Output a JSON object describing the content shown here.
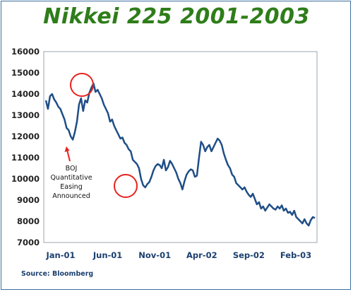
{
  "title": "Nikkei 225 2001-2003",
  "source": "Source: Bloomberg",
  "annotation": {
    "lines": [
      "BOJ",
      "Quantitative",
      "Easing",
      "Announced"
    ],
    "color": "#e8231f"
  },
  "colors": {
    "line": "#1f4e87",
    "title": "#2e7d1a",
    "highlight": "#e8231f",
    "frame": "#3d6e9e"
  },
  "chart_data": {
    "type": "line",
    "title": "Nikkei 225 2001-2003",
    "xlabel": "",
    "ylabel": "",
    "ylim": [
      7000,
      16000
    ],
    "yticks": [
      7000,
      8000,
      9000,
      10000,
      11000,
      12000,
      13000,
      14000,
      15000,
      16000
    ],
    "xtick_labels": [
      "Jan-01",
      "Jun-01",
      "Nov-01",
      "Apr-02",
      "Sep-02",
      "Feb-03"
    ],
    "grid": false,
    "series": [
      {
        "values": [
          13700,
          13300,
          13900,
          14000,
          13750,
          13600,
          13400,
          13300,
          13050,
          12800,
          12400,
          12300,
          12000,
          11850,
          12200,
          12700,
          13500,
          13800,
          13200,
          13700,
          13600,
          14050,
          14300,
          14500,
          14100,
          14200,
          14000,
          13800,
          13500,
          13300,
          13100,
          12700,
          12800,
          12500,
          12300,
          12100,
          11900,
          11950,
          11700,
          11600,
          11400,
          11300,
          10900,
          10800,
          10700,
          10500,
          10000,
          9700,
          9600,
          9750,
          9850,
          10100,
          10400,
          10600,
          10700,
          10650,
          10500,
          10900,
          10400,
          10550,
          10850,
          10700,
          10500,
          10300,
          10000,
          9800,
          9500,
          9900,
          10200,
          10350,
          10450,
          10400,
          10100,
          10150,
          11000,
          11750,
          11600,
          11300,
          11500,
          11600,
          11300,
          11500,
          11700,
          11900,
          11800,
          11600,
          11200,
          10900,
          10650,
          10500,
          10200,
          10100,
          9800,
          9700,
          9600,
          9500,
          9600,
          9400,
          9250,
          9150,
          9300,
          9050,
          8800,
          8900,
          8600,
          8700,
          8500,
          8650,
          8800,
          8700,
          8600,
          8550,
          8700,
          8600,
          8750,
          8500,
          8600,
          8400,
          8450,
          8300,
          8500,
          8200,
          8100,
          8000,
          7900,
          8100,
          7900,
          7800,
          8050,
          8200,
          8150
        ]
      }
    ]
  }
}
